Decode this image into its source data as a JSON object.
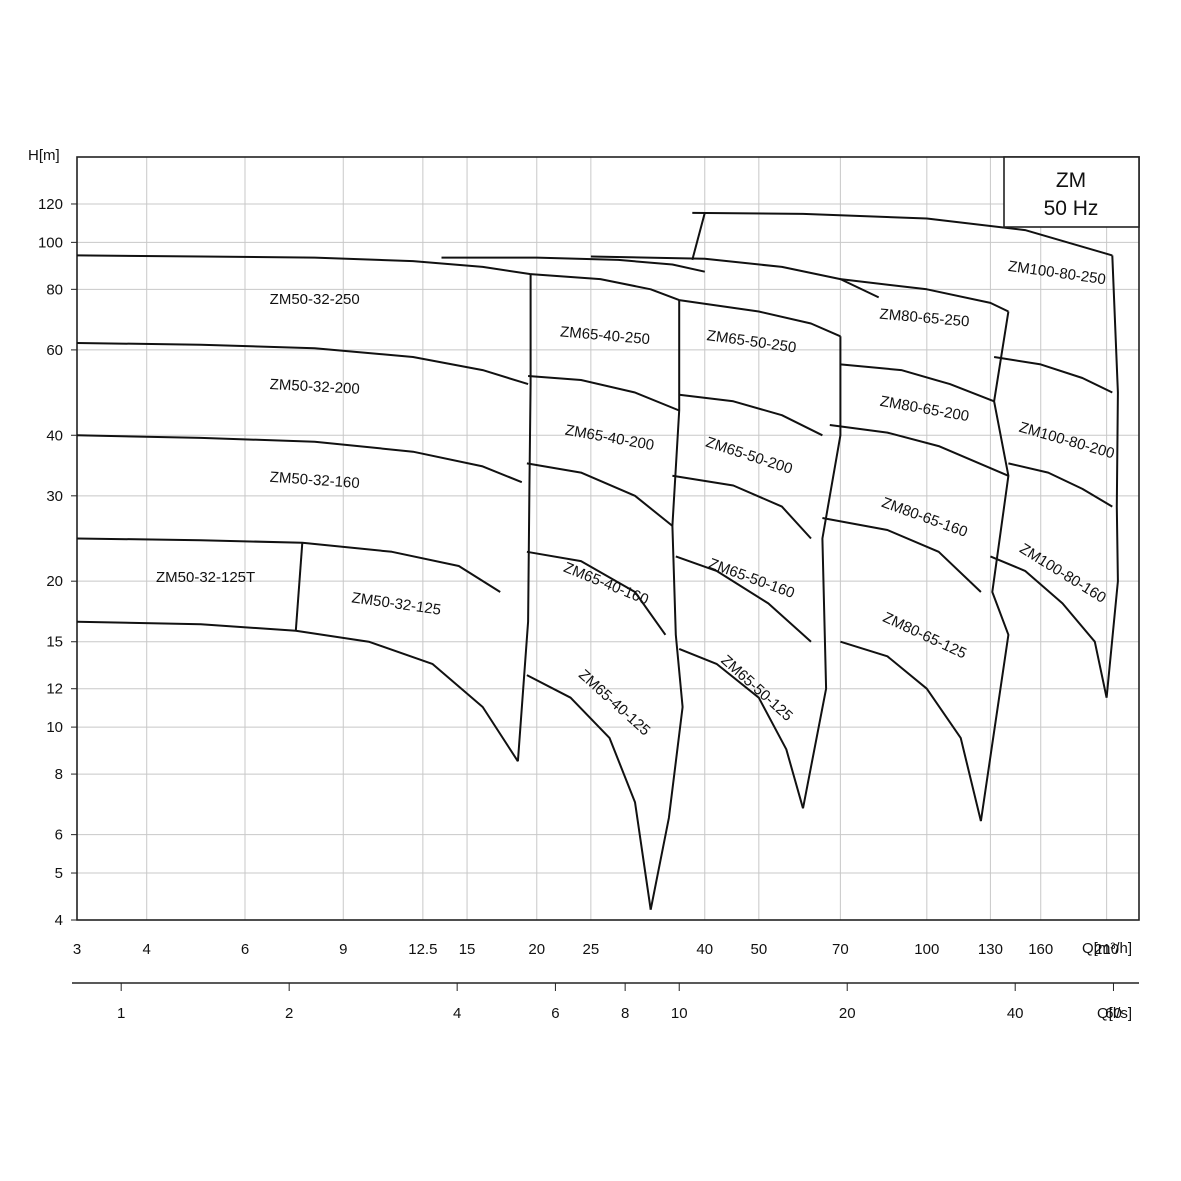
{
  "chart_data": {
    "type": "line",
    "title": "",
    "legend_box": {
      "line1": "ZM",
      "line2": "50 Hz"
    },
    "x_axis": {
      "label": "Q[m³/h]",
      "scale": "log",
      "range": [
        3,
        240
      ],
      "ticks": [
        "3",
        "4",
        "6",
        "9",
        "12.5",
        "15",
        "20",
        "25",
        "40",
        "50",
        "70",
        "100",
        "130",
        "160",
        "210"
      ]
    },
    "x2_axis": {
      "label": "Q[l/s]",
      "scale": "log",
      "ticks": [
        "1",
        "2",
        "4",
        "6",
        "8",
        "10",
        "20",
        "40",
        "60"
      ]
    },
    "y_axis": {
      "label": "H[m]",
      "scale": "log",
      "range": [
        4,
        150
      ],
      "ticks": [
        "4",
        "5",
        "6",
        "8",
        "10",
        "12",
        "15",
        "20",
        "30",
        "40",
        "60",
        "80",
        "100",
        "120"
      ]
    },
    "grid": true,
    "regions": [
      {
        "name": "ZM50-32-125T",
        "label": "ZM50-32-125T"
      },
      {
        "name": "ZM50-32-125",
        "label": "ZM50-32-125"
      },
      {
        "name": "ZM50-32-160",
        "label": "ZM50-32-160"
      },
      {
        "name": "ZM50-32-200",
        "label": "ZM50-32-200"
      },
      {
        "name": "ZM50-32-250",
        "label": "ZM50-32-250"
      },
      {
        "name": "ZM65-40-125",
        "label": "ZM65-40-125"
      },
      {
        "name": "ZM65-40-160",
        "label": "ZM65-40-160"
      },
      {
        "name": "ZM65-40-200",
        "label": "ZM65-40-200"
      },
      {
        "name": "ZM65-40-250",
        "label": "ZM65-40-250"
      },
      {
        "name": "ZM65-50-125",
        "label": "ZM65-50-125"
      },
      {
        "name": "ZM65-50-160",
        "label": "ZM65-50-160"
      },
      {
        "name": "ZM65-50-200",
        "label": "ZM65-50-200"
      },
      {
        "name": "ZM65-50-250",
        "label": "ZM65-50-250"
      },
      {
        "name": "ZM80-65-125",
        "label": "ZM80-65-125"
      },
      {
        "name": "ZM80-65-160",
        "label": "ZM80-65-160"
      },
      {
        "name": "ZM80-65-200",
        "label": "ZM80-65-200"
      },
      {
        "name": "ZM80-65-250",
        "label": "ZM80-65-250"
      },
      {
        "name": "ZM100-80-160",
        "label": "ZM100-80-160"
      },
      {
        "name": "ZM100-80-200",
        "label": "ZM100-80-200"
      },
      {
        "name": "ZM100-80-250",
        "label": "ZM100-80-250"
      }
    ],
    "curves": [
      {
        "name": "ZM50-32 max-dia upper",
        "points": [
          [
            3,
            94
          ],
          [
            5,
            93.5
          ],
          [
            8,
            93
          ],
          [
            12,
            91.5
          ],
          [
            16,
            89
          ],
          [
            19.5,
            86
          ]
        ]
      },
      {
        "name": "ZM50-32-250 lower",
        "points": [
          [
            3,
            62
          ],
          [
            5,
            61.5
          ],
          [
            8,
            60.5
          ],
          [
            12,
            58
          ],
          [
            16,
            54.5
          ],
          [
            19.3,
            51
          ]
        ]
      },
      {
        "name": "ZM50-32-200 lower",
        "points": [
          [
            3,
            40
          ],
          [
            5,
            39.5
          ],
          [
            8,
            38.8
          ],
          [
            12,
            37
          ],
          [
            16,
            34.5
          ],
          [
            18.8,
            32
          ]
        ]
      },
      {
        "name": "ZM50-32-160 lower",
        "points": [
          [
            3,
            24.5
          ],
          [
            5,
            24.3
          ],
          [
            7.6,
            24
          ],
          [
            11,
            23
          ],
          [
            14.5,
            21.5
          ],
          [
            17.2,
            19
          ]
        ]
      },
      {
        "name": "ZM50-32-125 lower",
        "points": [
          [
            3,
            16.5
          ],
          [
            5,
            16.3
          ],
          [
            7.4,
            15.8
          ],
          [
            10,
            15
          ],
          [
            13,
            13.5
          ],
          [
            16,
            11
          ],
          [
            18.5,
            8.5
          ]
        ]
      },
      {
        "name": "ZM50-32 right boundary",
        "points": [
          [
            18.5,
            8.5
          ],
          [
            19.3,
            16.5
          ],
          [
            19.4,
            31
          ],
          [
            19.5,
            51
          ],
          [
            19.5,
            86
          ]
        ]
      },
      {
        "name": "ZM50-32-125T divider",
        "points": [
          [
            7.6,
            24
          ],
          [
            7.4,
            15.8
          ]
        ]
      },
      {
        "name": "ZM65-40-250 upper",
        "points": [
          [
            13.5,
            93
          ],
          [
            20,
            93
          ],
          [
            28,
            92
          ],
          [
            35,
            90
          ],
          [
            40,
            87
          ]
        ]
      },
      {
        "name": "ZM65-40 top",
        "points": [
          [
            19.5,
            86
          ],
          [
            26,
            84
          ],
          [
            32,
            80
          ],
          [
            36,
            76
          ]
        ]
      },
      {
        "name": "ZM65-40-250 lower",
        "points": [
          [
            19.3,
            53
          ],
          [
            24,
            52
          ],
          [
            30,
            49
          ],
          [
            36,
            45
          ]
        ]
      },
      {
        "name": "ZM65-40-200 lower",
        "points": [
          [
            19.2,
            35
          ],
          [
            24,
            33.5
          ],
          [
            30,
            30
          ],
          [
            35,
            26
          ]
        ]
      },
      {
        "name": "ZM65-40-160 lower",
        "points": [
          [
            19.2,
            23
          ],
          [
            24,
            22
          ],
          [
            30,
            19
          ],
          [
            34,
            15.5
          ]
        ]
      },
      {
        "name": "ZM65-40-125 lower",
        "points": [
          [
            19.2,
            12.8
          ],
          [
            23,
            11.5
          ],
          [
            27,
            9.5
          ],
          [
            30,
            7
          ],
          [
            32,
            4.2
          ]
        ]
      },
      {
        "name": "ZM65-40 right boundary",
        "points": [
          [
            32,
            4.2
          ],
          [
            34.5,
            6.5
          ],
          [
            36.5,
            11
          ],
          [
            35.5,
            15.5
          ],
          [
            35,
            26
          ],
          [
            36,
            45
          ],
          [
            36,
            76
          ]
        ]
      },
      {
        "name": "ZM65-50 upper",
        "points": [
          [
            25,
            93.5
          ],
          [
            40,
            92.5
          ],
          [
            55,
            89
          ],
          [
            70,
            84
          ],
          [
            82,
            77
          ]
        ]
      },
      {
        "name": "ZM65-50 top",
        "points": [
          [
            36,
            76
          ],
          [
            50,
            72
          ],
          [
            62,
            68
          ],
          [
            70,
            64
          ]
        ]
      },
      {
        "name": "ZM65-50-250 lower",
        "points": [
          [
            36,
            48.5
          ],
          [
            45,
            47
          ],
          [
            55,
            44
          ],
          [
            65,
            40
          ]
        ]
      },
      {
        "name": "ZM65-50-200 lower",
        "points": [
          [
            35,
            33
          ],
          [
            45,
            31.5
          ],
          [
            55,
            28.5
          ],
          [
            62,
            24.5
          ]
        ]
      },
      {
        "name": "ZM65-50-160 lower",
        "points": [
          [
            35.5,
            22.5
          ],
          [
            42,
            21
          ],
          [
            52,
            18
          ],
          [
            62,
            15
          ]
        ]
      },
      {
        "name": "ZM65-50-125 lower",
        "points": [
          [
            36,
            14.5
          ],
          [
            42,
            13.5
          ],
          [
            50,
            11.5
          ],
          [
            56,
            9
          ],
          [
            60,
            6.8
          ]
        ]
      },
      {
        "name": "ZM65-50 right boundary",
        "points": [
          [
            60,
            6.8
          ],
          [
            66,
            12
          ],
          [
            65,
            24.5
          ],
          [
            70,
            40
          ],
          [
            70,
            64
          ]
        ]
      },
      {
        "name": "ZM100-80-250 upper",
        "points": [
          [
            38,
            115
          ],
          [
            60,
            114.5
          ],
          [
            100,
            112
          ],
          [
            150,
            106
          ],
          [
            215,
            94
          ]
        ]
      },
      {
        "name": "ZM80-65 top",
        "points": [
          [
            70,
            84
          ],
          [
            100,
            80
          ],
          [
            130,
            75
          ],
          [
            140,
            72
          ]
        ]
      },
      {
        "name": "ZM80-65-250 lower",
        "points": [
          [
            70,
            56
          ],
          [
            90,
            54.5
          ],
          [
            110,
            51
          ],
          [
            132,
            47
          ]
        ]
      },
      {
        "name": "ZM80-65-200 lower",
        "points": [
          [
            67,
            42
          ],
          [
            85,
            40.5
          ],
          [
            105,
            38
          ],
          [
            140,
            33
          ]
        ]
      },
      {
        "name": "ZM80-65-160 lower",
        "points": [
          [
            65,
            27
          ],
          [
            85,
            25.5
          ],
          [
            105,
            23
          ],
          [
            125,
            19
          ]
        ]
      },
      {
        "name": "ZM80-65-125 lower",
        "points": [
          [
            70,
            15
          ],
          [
            85,
            14
          ],
          [
            100,
            12
          ],
          [
            115,
            9.5
          ],
          [
            125,
            6.4
          ]
        ]
      },
      {
        "name": "ZM80-65 right boundary",
        "points": [
          [
            125,
            6.4
          ],
          [
            140,
            15.5
          ],
          [
            131,
            19
          ],
          [
            140,
            33
          ],
          [
            132,
            47
          ],
          [
            140,
            72
          ]
        ]
      },
      {
        "name": "ZM100-80-250 lower",
        "points": [
          [
            132,
            58
          ],
          [
            160,
            56
          ],
          [
            190,
            52.5
          ],
          [
            215,
            49
          ]
        ]
      },
      {
        "name": "ZM100-80-200 lower",
        "points": [
          [
            140,
            35
          ],
          [
            165,
            33.5
          ],
          [
            190,
            31
          ],
          [
            215,
            28.5
          ]
        ]
      },
      {
        "name": "ZM100-80-160 lower",
        "points": [
          [
            130,
            22.5
          ],
          [
            150,
            21
          ],
          [
            175,
            18
          ],
          [
            200,
            15
          ],
          [
            210,
            11.5
          ]
        ]
      },
      {
        "name": "ZM100-80 right boundary",
        "points": [
          [
            210,
            11.5
          ],
          [
            220,
            20
          ],
          [
            219,
            28.5
          ],
          [
            220,
            49
          ],
          [
            215,
            94
          ]
        ]
      },
      {
        "name": "ZM100-80 left boundary",
        "points": [
          [
            38,
            92
          ],
          [
            40,
            115
          ]
        ]
      }
    ]
  }
}
